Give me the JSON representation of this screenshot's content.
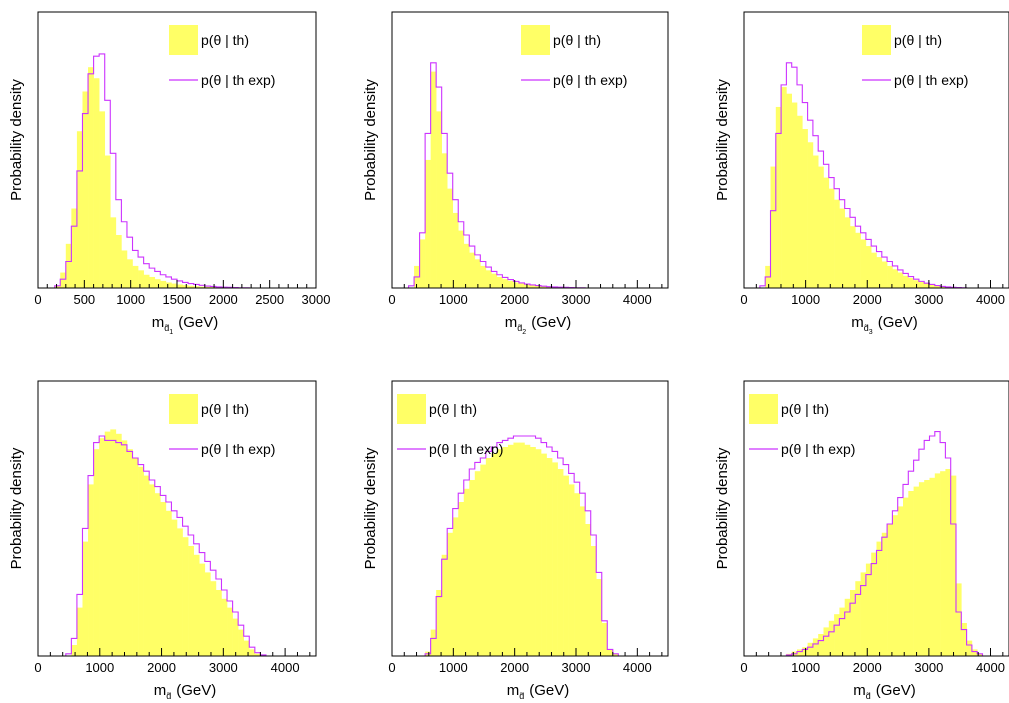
{
  "colors": {
    "hist_fill": "#ffff66",
    "line": "#cc33ff",
    "frame": "#000000"
  },
  "chart_data": [
    {
      "type": "histogram",
      "ylabel": "Probability density",
      "xlabel_main": "m",
      "xlabel_sub": "d̃",
      "xlabel_idx": "1",
      "xlabel_unit": "(GeV)",
      "xlim": [
        0,
        3000
      ],
      "ylim": [
        0,
        1.25
      ],
      "xticks": [
        0,
        500,
        1000,
        1500,
        2000,
        2500,
        3000
      ],
      "xtick_labels": [
        "0",
        "500",
        "1000",
        "1500",
        "2000",
        "2500",
        "3000"
      ],
      "legend": {
        "placement": "top-right",
        "fill_label": "p(θ | th)",
        "line_label": "p(θ | th exp)"
      },
      "bin_width": 60,
      "x_start": 0,
      "series": [
        {
          "name": "p(θ | th)",
          "style": "fill",
          "values": [
            0,
            0,
            0,
            0.01,
            0.07,
            0.2,
            0.36,
            0.71,
            0.89,
            1.0,
            0.95,
            0.8,
            0.6,
            0.32,
            0.24,
            0.17,
            0.13,
            0.1,
            0.08,
            0.06,
            0.05,
            0.04,
            0.032,
            0.025,
            0.02,
            0.016,
            0.013,
            0.01,
            0.008,
            0.006,
            0.005,
            0.004,
            0.003,
            0.002,
            0.002,
            0.001,
            0.001,
            0,
            0,
            0,
            0,
            0,
            0,
            0,
            0,
            0,
            0,
            0,
            0,
            0
          ]
        },
        {
          "name": "p(θ | th exp)",
          "style": "line",
          "values": [
            0,
            0,
            0,
            0.01,
            0.04,
            0.12,
            0.28,
            0.53,
            0.79,
            0.97,
            1.05,
            1.06,
            0.85,
            0.61,
            0.4,
            0.3,
            0.23,
            0.17,
            0.14,
            0.11,
            0.09,
            0.075,
            0.06,
            0.05,
            0.04,
            0.032,
            0.025,
            0.02,
            0.016,
            0.012,
            0.009,
            0.007,
            0.005,
            0.004,
            0.003,
            0.002,
            0.001,
            0.001,
            0,
            0,
            0,
            0,
            0,
            0,
            0,
            0,
            0,
            0,
            0,
            0
          ]
        }
      ]
    },
    {
      "type": "histogram",
      "ylabel": "Probability density",
      "xlabel_main": "m",
      "xlabel_sub": "d̃",
      "xlabel_idx": "2",
      "xlabel_unit": "(GeV)",
      "xlim": [
        0,
        4500
      ],
      "ylim": [
        0,
        1.25
      ],
      "xticks": [
        0,
        1000,
        2000,
        3000,
        4000
      ],
      "xtick_labels": [
        "0",
        "1000",
        "2000",
        "3000",
        "4000"
      ],
      "legend": {
        "placement": "top-right",
        "fill_label": "p(θ | th)",
        "line_label": "p(θ | th exp)"
      },
      "bin_width": 90,
      "x_start": 0,
      "series": [
        {
          "name": "p(θ | th)",
          "style": "fill",
          "values": [
            0,
            0,
            0,
            0,
            0.1,
            0.22,
            0.58,
            0.98,
            0.8,
            0.61,
            0.45,
            0.34,
            0.26,
            0.2,
            0.16,
            0.13,
            0.1,
            0.08,
            0.065,
            0.05,
            0.04,
            0.032,
            0.025,
            0.02,
            0.015,
            0.012,
            0.009,
            0.007,
            0.005,
            0.004,
            0.003,
            0.002,
            0.001,
            0.001,
            0,
            0,
            0,
            0,
            0,
            0,
            0,
            0,
            0,
            0,
            0,
            0,
            0,
            0,
            0,
            0
          ]
        },
        {
          "name": "p(θ | th exp)",
          "style": "line",
          "values": [
            0,
            0,
            0,
            0.01,
            0.05,
            0.25,
            0.7,
            1.02,
            0.91,
            0.7,
            0.52,
            0.4,
            0.3,
            0.24,
            0.19,
            0.15,
            0.12,
            0.095,
            0.075,
            0.06,
            0.048,
            0.038,
            0.03,
            0.023,
            0.018,
            0.014,
            0.011,
            0.008,
            0.006,
            0.005,
            0.004,
            0.003,
            0.002,
            0.001,
            0.001,
            0,
            0,
            0,
            0,
            0,
            0,
            0,
            0,
            0,
            0,
            0,
            0,
            0,
            0,
            0
          ]
        }
      ]
    },
    {
      "type": "histogram",
      "ylabel": "Probability density",
      "xlabel_main": "m",
      "xlabel_sub": "d̃",
      "xlabel_idx": "3",
      "xlabel_unit": "(GeV)",
      "xlim": [
        0,
        4300
      ],
      "ylim": [
        0,
        1.25
      ],
      "xticks": [
        0,
        1000,
        2000,
        3000,
        4000
      ],
      "xtick_labels": [
        "0",
        "1000",
        "2000",
        "3000",
        "4000"
      ],
      "legend": {
        "placement": "top-right",
        "fill_label": "p(θ | th)",
        "line_label": "p(θ | th exp)"
      },
      "bin_width": 86,
      "x_start": 0,
      "series": [
        {
          "name": "p(θ | th)",
          "style": "fill",
          "values": [
            0,
            0,
            0,
            0,
            0.1,
            0.55,
            0.82,
            0.91,
            0.88,
            0.84,
            0.78,
            0.72,
            0.66,
            0.6,
            0.55,
            0.5,
            0.45,
            0.4,
            0.36,
            0.32,
            0.28,
            0.25,
            0.22,
            0.19,
            0.16,
            0.14,
            0.12,
            0.1,
            0.085,
            0.07,
            0.055,
            0.045,
            0.035,
            0.027,
            0.02,
            0.015,
            0.01,
            0.007,
            0.005,
            0.003,
            0.002,
            0.001,
            0,
            0,
            0,
            0,
            0,
            0,
            0,
            0
          ]
        },
        {
          "name": "p(θ | th exp)",
          "style": "line",
          "values": [
            0,
            0,
            0,
            0.01,
            0.05,
            0.35,
            0.7,
            0.92,
            1.02,
            1.0,
            0.92,
            0.84,
            0.76,
            0.69,
            0.62,
            0.56,
            0.5,
            0.45,
            0.4,
            0.36,
            0.32,
            0.28,
            0.25,
            0.22,
            0.19,
            0.165,
            0.14,
            0.12,
            0.1,
            0.082,
            0.066,
            0.052,
            0.04,
            0.03,
            0.022,
            0.016,
            0.011,
            0.007,
            0.005,
            0.003,
            0.002,
            0.001,
            0,
            0,
            0,
            0,
            0,
            0,
            0,
            0
          ]
        }
      ]
    },
    {
      "type": "histogram",
      "ylabel": "Probability density",
      "xlabel_main": "m",
      "xlabel_sub": "d̃",
      "xlabel_idx": "",
      "xlabel_unit": "(GeV)",
      "xlim": [
        0,
        4500
      ],
      "ylim": [
        0,
        1.25
      ],
      "xticks": [
        0,
        1000,
        2000,
        3000,
        4000
      ],
      "xtick_labels": [
        "0",
        "1000",
        "2000",
        "3000",
        "4000"
      ],
      "legend": {
        "placement": "top-right",
        "fill_label": "p(θ | th)",
        "line_label": "p(θ | th exp)"
      },
      "bin_width": 90,
      "x_start": 0,
      "series": [
        {
          "name": "p(θ | th)",
          "style": "fill",
          "values": [
            0,
            0,
            0,
            0,
            0,
            0,
            0.05,
            0.22,
            0.52,
            0.78,
            0.94,
            0.99,
            1.02,
            1.03,
            1.01,
            0.98,
            0.94,
            0.9,
            0.86,
            0.82,
            0.78,
            0.74,
            0.7,
            0.66,
            0.62,
            0.58,
            0.54,
            0.5,
            0.46,
            0.42,
            0.38,
            0.34,
            0.3,
            0.26,
            0.22,
            0.17,
            0.12,
            0.07,
            0.03,
            0.01,
            0,
            0,
            0,
            0,
            0,
            0,
            0,
            0,
            0,
            0
          ]
        },
        {
          "name": "p(θ | th exp)",
          "style": "line",
          "values": [
            0,
            0,
            0,
            0,
            0,
            0.01,
            0.08,
            0.28,
            0.58,
            0.82,
            0.97,
            1.0,
            0.98,
            0.98,
            0.97,
            0.96,
            0.93,
            0.9,
            0.87,
            0.84,
            0.8,
            0.77,
            0.73,
            0.7,
            0.66,
            0.63,
            0.59,
            0.55,
            0.51,
            0.47,
            0.43,
            0.39,
            0.35,
            0.3,
            0.25,
            0.2,
            0.14,
            0.09,
            0.04,
            0.015,
            0.005,
            0,
            0,
            0,
            0,
            0,
            0,
            0,
            0,
            0
          ]
        }
      ]
    },
    {
      "type": "histogram",
      "ylabel": "Probability density",
      "xlabel_main": "m",
      "xlabel_sub": "d̃",
      "xlabel_idx": "",
      "xlabel_unit": "(GeV)",
      "xlim": [
        0,
        4500
      ],
      "ylim": [
        0,
        1.25
      ],
      "xticks": [
        0,
        1000,
        2000,
        3000,
        4000
      ],
      "xtick_labels": [
        "0",
        "1000",
        "2000",
        "3000",
        "4000"
      ],
      "legend": {
        "placement": "top-left",
        "fill_label": "p(θ | th)",
        "line_label": "p(θ | th exp)"
      },
      "bin_width": 90,
      "x_start": 0,
      "series": [
        {
          "name": "p(θ | th)",
          "style": "fill",
          "values": [
            0,
            0,
            0,
            0,
            0,
            0,
            0.02,
            0.12,
            0.3,
            0.46,
            0.56,
            0.63,
            0.7,
            0.76,
            0.8,
            0.84,
            0.87,
            0.9,
            0.92,
            0.94,
            0.95,
            0.96,
            0.97,
            0.97,
            0.96,
            0.95,
            0.94,
            0.92,
            0.9,
            0.88,
            0.85,
            0.82,
            0.78,
            0.74,
            0.68,
            0.6,
            0.5,
            0.35,
            0.15,
            0.03,
            0.01,
            0,
            0,
            0,
            0,
            0,
            0,
            0,
            0,
            0
          ]
        },
        {
          "name": "p(θ | th exp)",
          "style": "line",
          "values": [
            0,
            0,
            0,
            0,
            0,
            0,
            0.01,
            0.08,
            0.27,
            0.44,
            0.58,
            0.67,
            0.74,
            0.8,
            0.85,
            0.88,
            0.9,
            0.93,
            0.95,
            0.97,
            0.98,
            0.99,
            1.0,
            1.0,
            1.0,
            1.0,
            0.99,
            0.97,
            0.95,
            0.93,
            0.9,
            0.87,
            0.83,
            0.79,
            0.74,
            0.66,
            0.55,
            0.38,
            0.16,
            0.03,
            0.01,
            0,
            0,
            0,
            0,
            0,
            0,
            0,
            0,
            0
          ]
        }
      ]
    },
    {
      "type": "histogram",
      "ylabel": "Probability density",
      "xlabel_main": "m",
      "xlabel_sub": "d̃",
      "xlabel_idx": "",
      "xlabel_unit": "(GeV)",
      "xlim": [
        0,
        4300
      ],
      "ylim": [
        0,
        1.25
      ],
      "xticks": [
        0,
        1000,
        2000,
        3000,
        4000
      ],
      "xtick_labels": [
        "0",
        "1000",
        "2000",
        "3000",
        "4000"
      ],
      "legend": {
        "placement": "top-left",
        "fill_label": "p(θ | th)",
        "line_label": "p(θ | th exp)"
      },
      "bin_width": 86,
      "x_start": 0,
      "series": [
        {
          "name": "p(θ | th)",
          "style": "fill",
          "values": [
            0,
            0,
            0,
            0,
            0,
            0,
            0,
            0,
            0.01,
            0.02,
            0.03,
            0.04,
            0.06,
            0.08,
            0.1,
            0.13,
            0.16,
            0.19,
            0.22,
            0.26,
            0.3,
            0.34,
            0.38,
            0.42,
            0.47,
            0.52,
            0.56,
            0.6,
            0.64,
            0.68,
            0.72,
            0.75,
            0.77,
            0.79,
            0.8,
            0.81,
            0.83,
            0.84,
            0.85,
            0.82,
            0.33,
            0.15,
            0.07,
            0.03,
            0.01,
            0,
            0,
            0,
            0,
            0
          ]
        },
        {
          "name": "p(θ | th exp)",
          "style": "line",
          "values": [
            0,
            0,
            0,
            0,
            0,
            0,
            0,
            0,
            0.005,
            0.01,
            0.02,
            0.03,
            0.04,
            0.055,
            0.07,
            0.09,
            0.11,
            0.14,
            0.17,
            0.2,
            0.24,
            0.28,
            0.32,
            0.37,
            0.42,
            0.48,
            0.54,
            0.6,
            0.66,
            0.72,
            0.78,
            0.84,
            0.89,
            0.94,
            0.98,
            1.0,
            1.02,
            0.97,
            0.9,
            0.6,
            0.2,
            0.12,
            0.05,
            0.02,
            0.01,
            0,
            0,
            0,
            0,
            0
          ]
        }
      ]
    }
  ]
}
